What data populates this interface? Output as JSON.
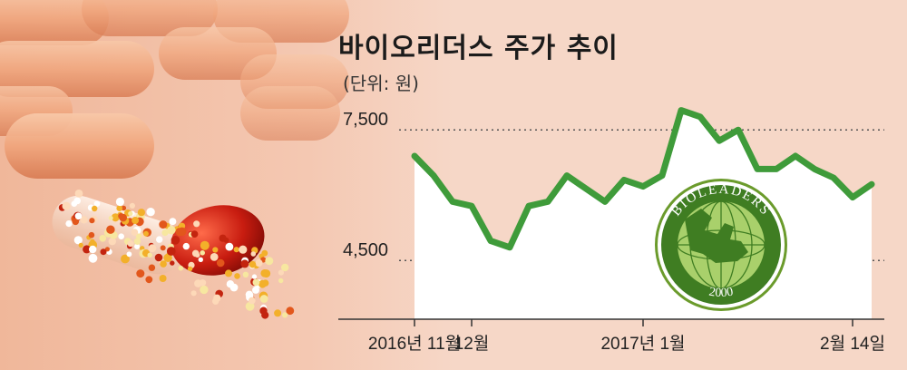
{
  "header": {
    "title": "바이오리더스 주가 추이",
    "unit": "(단위: 원)"
  },
  "logo": {
    "name": "BIOLEADERS",
    "year": "2000"
  },
  "chart_data": {
    "type": "line",
    "title": "바이오리더스 주가 추이",
    "unit_label": "(단위: 원)",
    "ylim": [
      3150,
      8400
    ],
    "yticks": [
      {
        "value": 7500,
        "label": "7,500"
      },
      {
        "value": 4500,
        "label": "4,500"
      }
    ],
    "xticks": [
      {
        "index": 0,
        "label": "2016년 11월"
      },
      {
        "index": 3,
        "label": "12월"
      },
      {
        "index": 12,
        "label": "2017년 1월"
      },
      {
        "index": 23,
        "label": "2월 14일"
      }
    ],
    "grid": "dotted horizontal at y-ticks",
    "colors": {
      "line": "#3f9b3a",
      "area": "#ffffff"
    },
    "series": [
      {
        "values": [
          6900,
          6450,
          5850,
          5750,
          4950,
          4800,
          5750,
          5850,
          6450,
          6150,
          5850,
          6350,
          6200,
          6450,
          7950,
          7800,
          7250,
          7500,
          6600,
          6600,
          6900,
          6600,
          6400,
          5950,
          6250
        ]
      }
    ]
  }
}
